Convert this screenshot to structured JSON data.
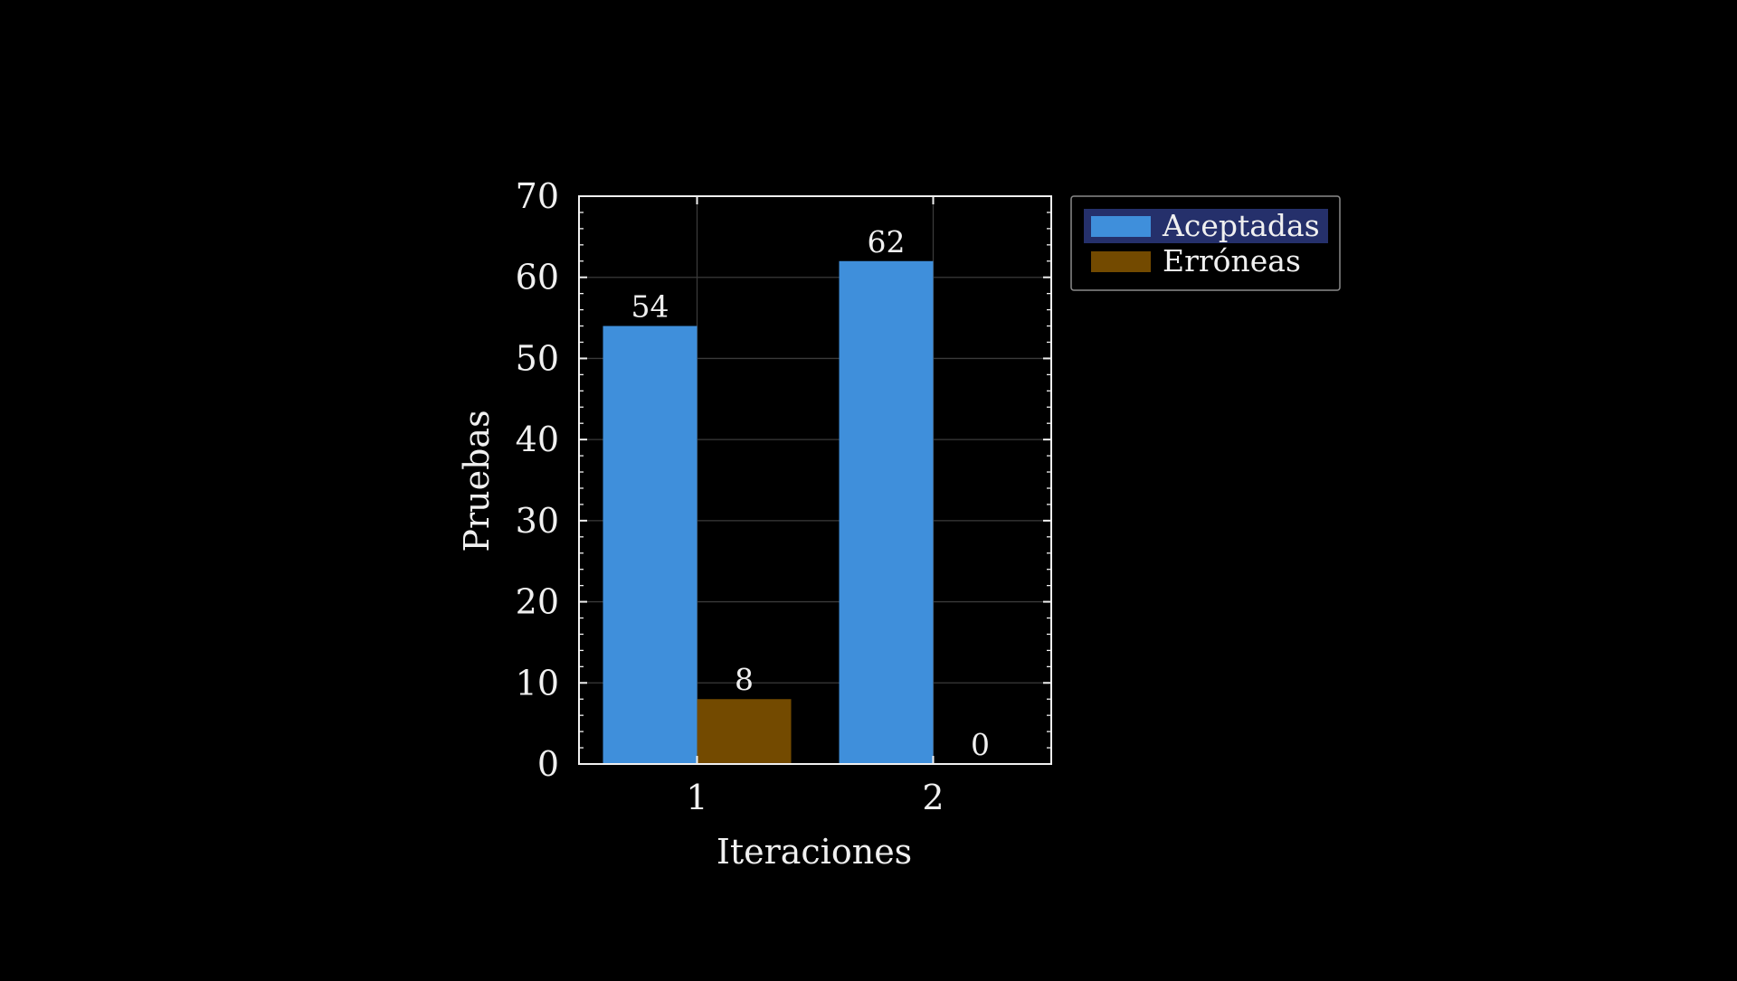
{
  "chart_data": {
    "type": "bar",
    "categories": [
      "1",
      "2"
    ],
    "series": [
      {
        "name": "Aceptadas",
        "values": [
          54,
          62
        ],
        "color": "#3f8fdb"
      },
      {
        "name": "Erróneas",
        "values": [
          8,
          0
        ],
        "color": "#734a00"
      }
    ],
    "title": "",
    "xlabel": "Iteraciones",
    "ylabel": "Pruebas",
    "ylim": [
      0,
      70
    ],
    "yticks": [
      0,
      10,
      20,
      30,
      40,
      50,
      60,
      70
    ],
    "grid": true,
    "legend_position": "outside-right-top",
    "data_labels": true
  },
  "colors": {
    "background": "#000000",
    "axis": "#f0f0f0",
    "grid": "#3a3a3a",
    "legend_highlight": "#25306b"
  }
}
